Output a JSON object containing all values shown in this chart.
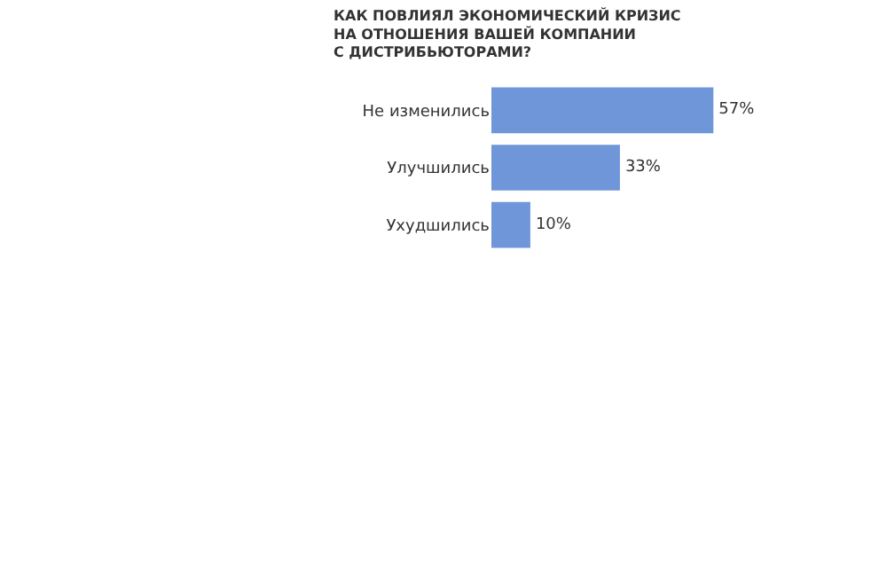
{
  "chart_data": {
    "type": "bar",
    "orientation": "horizontal",
    "title": "КАК ПОВЛИЯЛ ЭКОНОМИЧЕСКИЙ КРИЗИС\nНА ОТНОШЕНИЯ ВАШЕЙ КОМПАНИИ\nС ДИСТРИБЬЮТОРАМИ?",
    "categories": [
      "Не изменились",
      "Улучшились",
      "Ухудшились"
    ],
    "values": [
      57,
      33,
      10
    ],
    "value_labels": [
      "57%",
      "33%",
      "10%"
    ],
    "color": "#6f96d9",
    "grid": false,
    "legend": false
  }
}
